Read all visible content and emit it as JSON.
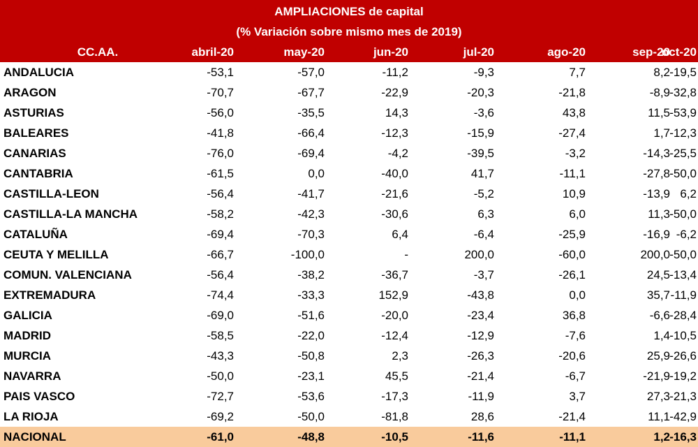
{
  "title": {
    "line1": "AMPLIACIONES de capital",
    "line2": "(% Variación sobre mismo mes de 2019)"
  },
  "header": {
    "first": "CC.AA.",
    "months": [
      "abril-20",
      "may-20",
      "jun-20",
      "jul-20",
      "ago-20",
      "sep-20",
      "oct-20"
    ]
  },
  "rows": [
    {
      "name": "ANDALUCIA",
      "values": [
        "-53,1",
        "-57,0",
        "-11,2",
        "-9,3",
        "7,7",
        "8,2",
        "-19,5"
      ]
    },
    {
      "name": "ARAGON",
      "values": [
        "-70,7",
        "-67,7",
        "-22,9",
        "-20,3",
        "-21,8",
        "-8,9",
        "-32,8"
      ]
    },
    {
      "name": "ASTURIAS",
      "values": [
        "-56,0",
        "-35,5",
        "14,3",
        "-3,6",
        "43,8",
        "11,5",
        "-53,9"
      ]
    },
    {
      "name": "BALEARES",
      "values": [
        "-41,8",
        "-66,4",
        "-12,3",
        "-15,9",
        "-27,4",
        "1,7",
        "-12,3"
      ]
    },
    {
      "name": "CANARIAS",
      "values": [
        "-76,0",
        "-69,4",
        "-4,2",
        "-39,5",
        "-3,2",
        "-14,3",
        "-25,5"
      ]
    },
    {
      "name": "CANTABRIA",
      "values": [
        "-61,5",
        "0,0",
        "-40,0",
        "41,7",
        "-11,1",
        "-27,8",
        "-50,0"
      ]
    },
    {
      "name": "CASTILLA-LEON",
      "values": [
        "-56,4",
        "-41,7",
        "-21,6",
        "-5,2",
        "10,9",
        "-13,9",
        "6,2"
      ]
    },
    {
      "name": "CASTILLA-LA MANCHA",
      "values": [
        "-58,2",
        "-42,3",
        "-30,6",
        "6,3",
        "6,0",
        "11,3",
        "-50,0"
      ]
    },
    {
      "name": "CATALUÑA",
      "values": [
        "-69,4",
        "-70,3",
        "6,4",
        "-6,4",
        "-25,9",
        "-16,9",
        "-6,2"
      ]
    },
    {
      "name": "CEUTA Y MELILLA",
      "values": [
        "-66,7",
        "-100,0",
        "-",
        "200,0",
        "-60,0",
        "200,0",
        "-50,0"
      ]
    },
    {
      "name": "COMUN. VALENCIANA",
      "values": [
        "-56,4",
        "-38,2",
        "-36,7",
        "-3,7",
        "-26,1",
        "24,5",
        "-13,4"
      ]
    },
    {
      "name": "EXTREMADURA",
      "values": [
        "-74,4",
        "-33,3",
        "152,9",
        "-43,8",
        "0,0",
        "35,7",
        "-11,9"
      ]
    },
    {
      "name": "GALICIA",
      "values": [
        "-69,0",
        "-51,6",
        "-20,0",
        "-23,4",
        "36,8",
        "-6,6",
        "-28,4"
      ]
    },
    {
      "name": "MADRID",
      "values": [
        "-58,5",
        "-22,0",
        "-12,4",
        "-12,9",
        "-7,6",
        "1,4",
        "-10,5"
      ]
    },
    {
      "name": "MURCIA",
      "values": [
        "-43,3",
        "-50,8",
        "2,3",
        "-26,3",
        "-20,6",
        "25,9",
        "-26,6"
      ]
    },
    {
      "name": "NAVARRA",
      "values": [
        "-50,0",
        "-23,1",
        "45,5",
        "-21,4",
        "-6,7",
        "-21,9",
        "-19,2"
      ]
    },
    {
      "name": "PAIS VASCO",
      "values": [
        "-72,7",
        "-53,6",
        "-17,3",
        "-11,9",
        "3,7",
        "27,3",
        "-21,3"
      ]
    },
    {
      "name": "LA RIOJA",
      "values": [
        "-69,2",
        "-50,0",
        "-81,8",
        "28,6",
        "-21,4",
        "11,1",
        "-42,9"
      ]
    }
  ],
  "total": {
    "name": "NACIONAL",
    "values": [
      "-61,0",
      "-48,8",
      "-10,5",
      "-11,6",
      "-11,1",
      "1,2",
      "-16,3"
    ]
  },
  "colors": {
    "header_bg": "#c00000",
    "header_text": "#ffffff",
    "total_bg": "#f9cb9c"
  }
}
